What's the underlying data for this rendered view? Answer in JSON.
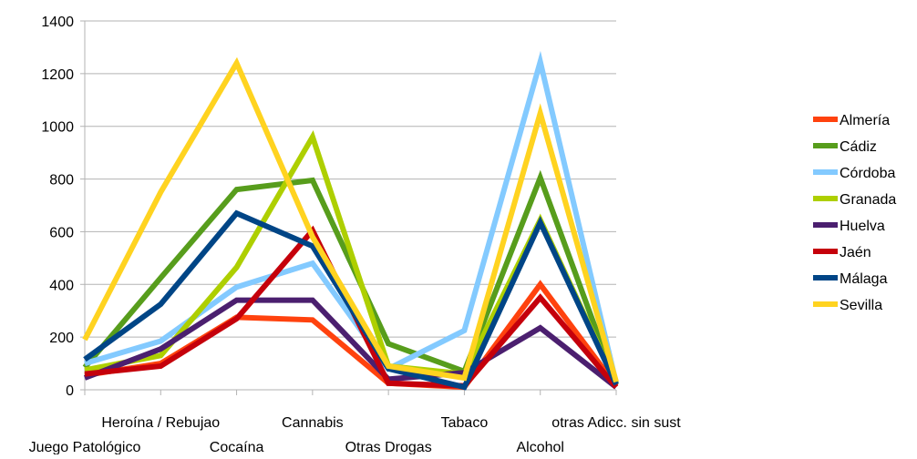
{
  "chart_data": {
    "type": "line",
    "title": "",
    "xlabel": "",
    "ylabel": "",
    "ylim": [
      0,
      1400
    ],
    "yticks": [
      0,
      200,
      400,
      600,
      800,
      1000,
      1200,
      1400
    ],
    "grid": "horizontal",
    "legend_position": "right",
    "categories": [
      "Juego Patológico",
      "Heroína / Rebujao",
      "Cocaína",
      "Cannabis",
      "Otras Drogas",
      "Tabaco",
      "Alcohol",
      "otras Adicc. sin sust"
    ],
    "series": [
      {
        "name": "Almería",
        "color": "#ff420e",
        "values": [
          55,
          100,
          275,
          265,
          25,
          10,
          400,
          15
        ]
      },
      {
        "name": "Cádiz",
        "color": "#579d1c",
        "values": [
          85,
          425,
          760,
          795,
          175,
          70,
          805,
          20
        ]
      },
      {
        "name": "Córdoba",
        "color": "#83caff",
        "values": [
          100,
          185,
          390,
          480,
          80,
          225,
          1245,
          25
        ]
      },
      {
        "name": "Granada",
        "color": "#aecf00",
        "values": [
          75,
          130,
          465,
          960,
          90,
          60,
          645,
          25
        ]
      },
      {
        "name": "Huelva",
        "color": "#4b1f6f",
        "values": [
          45,
          155,
          340,
          340,
          40,
          65,
          235,
          10
        ]
      },
      {
        "name": "Jaén",
        "color": "#c5000b",
        "values": [
          60,
          90,
          270,
          605,
          25,
          15,
          350,
          10
        ]
      },
      {
        "name": "Málaga",
        "color": "#004586",
        "values": [
          115,
          325,
          670,
          545,
          80,
          10,
          635,
          20
        ]
      },
      {
        "name": "Sevilla",
        "color": "#ffd320",
        "values": [
          190,
          750,
          1240,
          580,
          90,
          45,
          1050,
          30
        ]
      }
    ]
  }
}
